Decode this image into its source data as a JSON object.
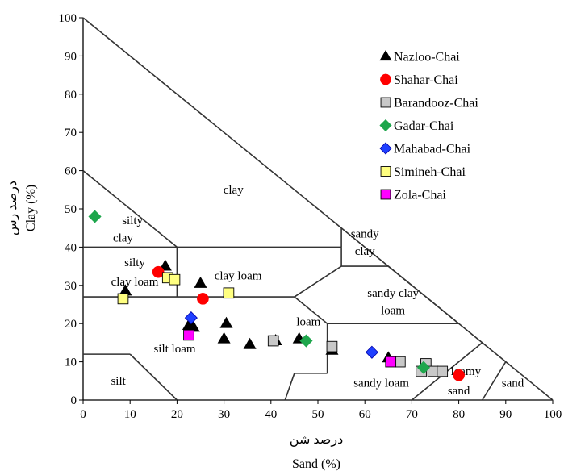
{
  "chart_data": {
    "type": "scatter",
    "title": "",
    "xlabel": "Sand (%)",
    "xlabel_fa": "درصد شن",
    "ylabel": "Clay  (%)",
    "ylabel_fa": "درصد رس",
    "xlim": [
      0,
      100
    ],
    "ylim": [
      0,
      100
    ],
    "x_ticks": [
      0,
      10,
      20,
      30,
      40,
      50,
      60,
      70,
      80,
      90,
      100
    ],
    "y_ticks": [
      0,
      10,
      20,
      30,
      40,
      50,
      60,
      70,
      80,
      90,
      100
    ],
    "grid": false,
    "legend_position": "top-right",
    "boundaries": [
      [
        [
          0,
          100
        ],
        [
          100,
          0
        ]
      ],
      [
        [
          0,
          60
        ],
        [
          20,
          40
        ]
      ],
      [
        [
          0,
          40
        ],
        [
          55,
          40
        ]
      ],
      [
        [
          0,
          27
        ],
        [
          45,
          27
        ]
      ],
      [
        [
          20,
          40
        ],
        [
          20,
          27
        ]
      ],
      [
        [
          0,
          12
        ],
        [
          10,
          12
        ]
      ],
      [
        [
          10,
          12
        ],
        [
          20,
          0
        ]
      ],
      [
        [
          45,
          27
        ],
        [
          52,
          20
        ]
      ],
      [
        [
          52,
          20
        ],
        [
          52,
          7
        ]
      ],
      [
        [
          52,
          7
        ],
        [
          45,
          7
        ]
      ],
      [
        [
          45,
          7
        ],
        [
          43,
          0
        ]
      ],
      [
        [
          55,
          40
        ],
        [
          55,
          35
        ]
      ],
      [
        [
          55,
          35
        ],
        [
          65,
          35
        ]
      ],
      [
        [
          55,
          35
        ],
        [
          45,
          27
        ]
      ],
      [
        [
          52,
          20
        ],
        [
          80,
          20
        ]
      ],
      [
        [
          55,
          45
        ],
        [
          55,
          40
        ]
      ],
      [
        [
          65,
          35
        ],
        [
          65,
          35
        ]
      ],
      [
        [
          80,
          20
        ],
        [
          80,
          20
        ]
      ],
      [
        [
          70,
          0
        ],
        [
          85,
          15
        ]
      ],
      [
        [
          85,
          0
        ],
        [
          90,
          10
        ]
      ],
      [
        [
          65,
          35
        ],
        [
          80,
          20
        ]
      ]
    ],
    "regions": [
      {
        "label": "clay",
        "x": 32,
        "y": 54
      },
      {
        "label": "silty",
        "x": 10.5,
        "y": 46
      },
      {
        "label": "clay",
        "x": 8.5,
        "y": 41.5
      },
      {
        "label": "silty",
        "x": 11,
        "y": 35
      },
      {
        "label": "clay loam",
        "x": 11,
        "y": 30
      },
      {
        "label": "clay loam",
        "x": 33,
        "y": 31.5
      },
      {
        "label": "sandy",
        "x": 60,
        "y": 42.5
      },
      {
        "label": "clay",
        "x": 60,
        "y": 38
      },
      {
        "label": "sandy clay",
        "x": 66,
        "y": 27
      },
      {
        "label": "loam",
        "x": 66,
        "y": 22.5
      },
      {
        "label": "loam",
        "x": 48,
        "y": 19.5
      },
      {
        "label": "silt loam",
        "x": 19.5,
        "y": 12.5
      },
      {
        "label": "silt",
        "x": 7.5,
        "y": 4
      },
      {
        "label": "sandy loam",
        "x": 63.5,
        "y": 3.5
      },
      {
        "label": "loamy",
        "x": 81.5,
        "y": 6.5
      },
      {
        "label": "sand",
        "x": 80,
        "y": 1.5
      },
      {
        "label": "sand",
        "x": 91.5,
        "y": 3.5
      }
    ],
    "series": [
      {
        "name": "Nazloo-Chai",
        "marker": "triangle",
        "color": "#000000",
        "points": [
          [
            17.5,
            35
          ],
          [
            9,
            28.5
          ],
          [
            25,
            30.5
          ],
          [
            22.5,
            19.5
          ],
          [
            23.5,
            19
          ],
          [
            30.5,
            20
          ],
          [
            30,
            16
          ],
          [
            35.5,
            14.5
          ],
          [
            41,
            15.5
          ],
          [
            46,
            16
          ],
          [
            53,
            13
          ],
          [
            65,
            11
          ]
        ]
      },
      {
        "name": "Shahar-Chai",
        "marker": "circle",
        "color": "#ff0000",
        "points": [
          [
            16,
            33.5
          ],
          [
            25.5,
            26.5
          ],
          [
            80,
            6.5
          ]
        ]
      },
      {
        "name": "Barandooz-Chai",
        "marker": "square",
        "color": "#c8c8c8",
        "points": [
          [
            40.5,
            15.5
          ],
          [
            53,
            14
          ],
          [
            67.5,
            10
          ],
          [
            73,
            9.5
          ],
          [
            72,
            7.5
          ],
          [
            74.5,
            7.5
          ],
          [
            76.5,
            7.5
          ]
        ]
      },
      {
        "name": "Gadar-Chai",
        "marker": "diamond",
        "color": "#1ea64c",
        "points": [
          [
            2.5,
            48
          ],
          [
            47.5,
            15.5
          ],
          [
            72.5,
            8.5
          ]
        ]
      },
      {
        "name": "Mahabad-Chai",
        "marker": "diamond",
        "color": "#1f3fff",
        "points": [
          [
            23,
            21.5
          ],
          [
            61.5,
            12.5
          ]
        ]
      },
      {
        "name": "Simineh-Chai",
        "marker": "square",
        "color": "#ffff80",
        "points": [
          [
            18,
            32
          ],
          [
            19.5,
            31.5
          ],
          [
            31,
            28
          ],
          [
            8.5,
            26.5
          ]
        ]
      },
      {
        "name": "Zola-Chai",
        "marker": "square",
        "color": "#ff00ff",
        "points": [
          [
            22.5,
            17
          ],
          [
            65.5,
            10
          ]
        ]
      }
    ]
  }
}
